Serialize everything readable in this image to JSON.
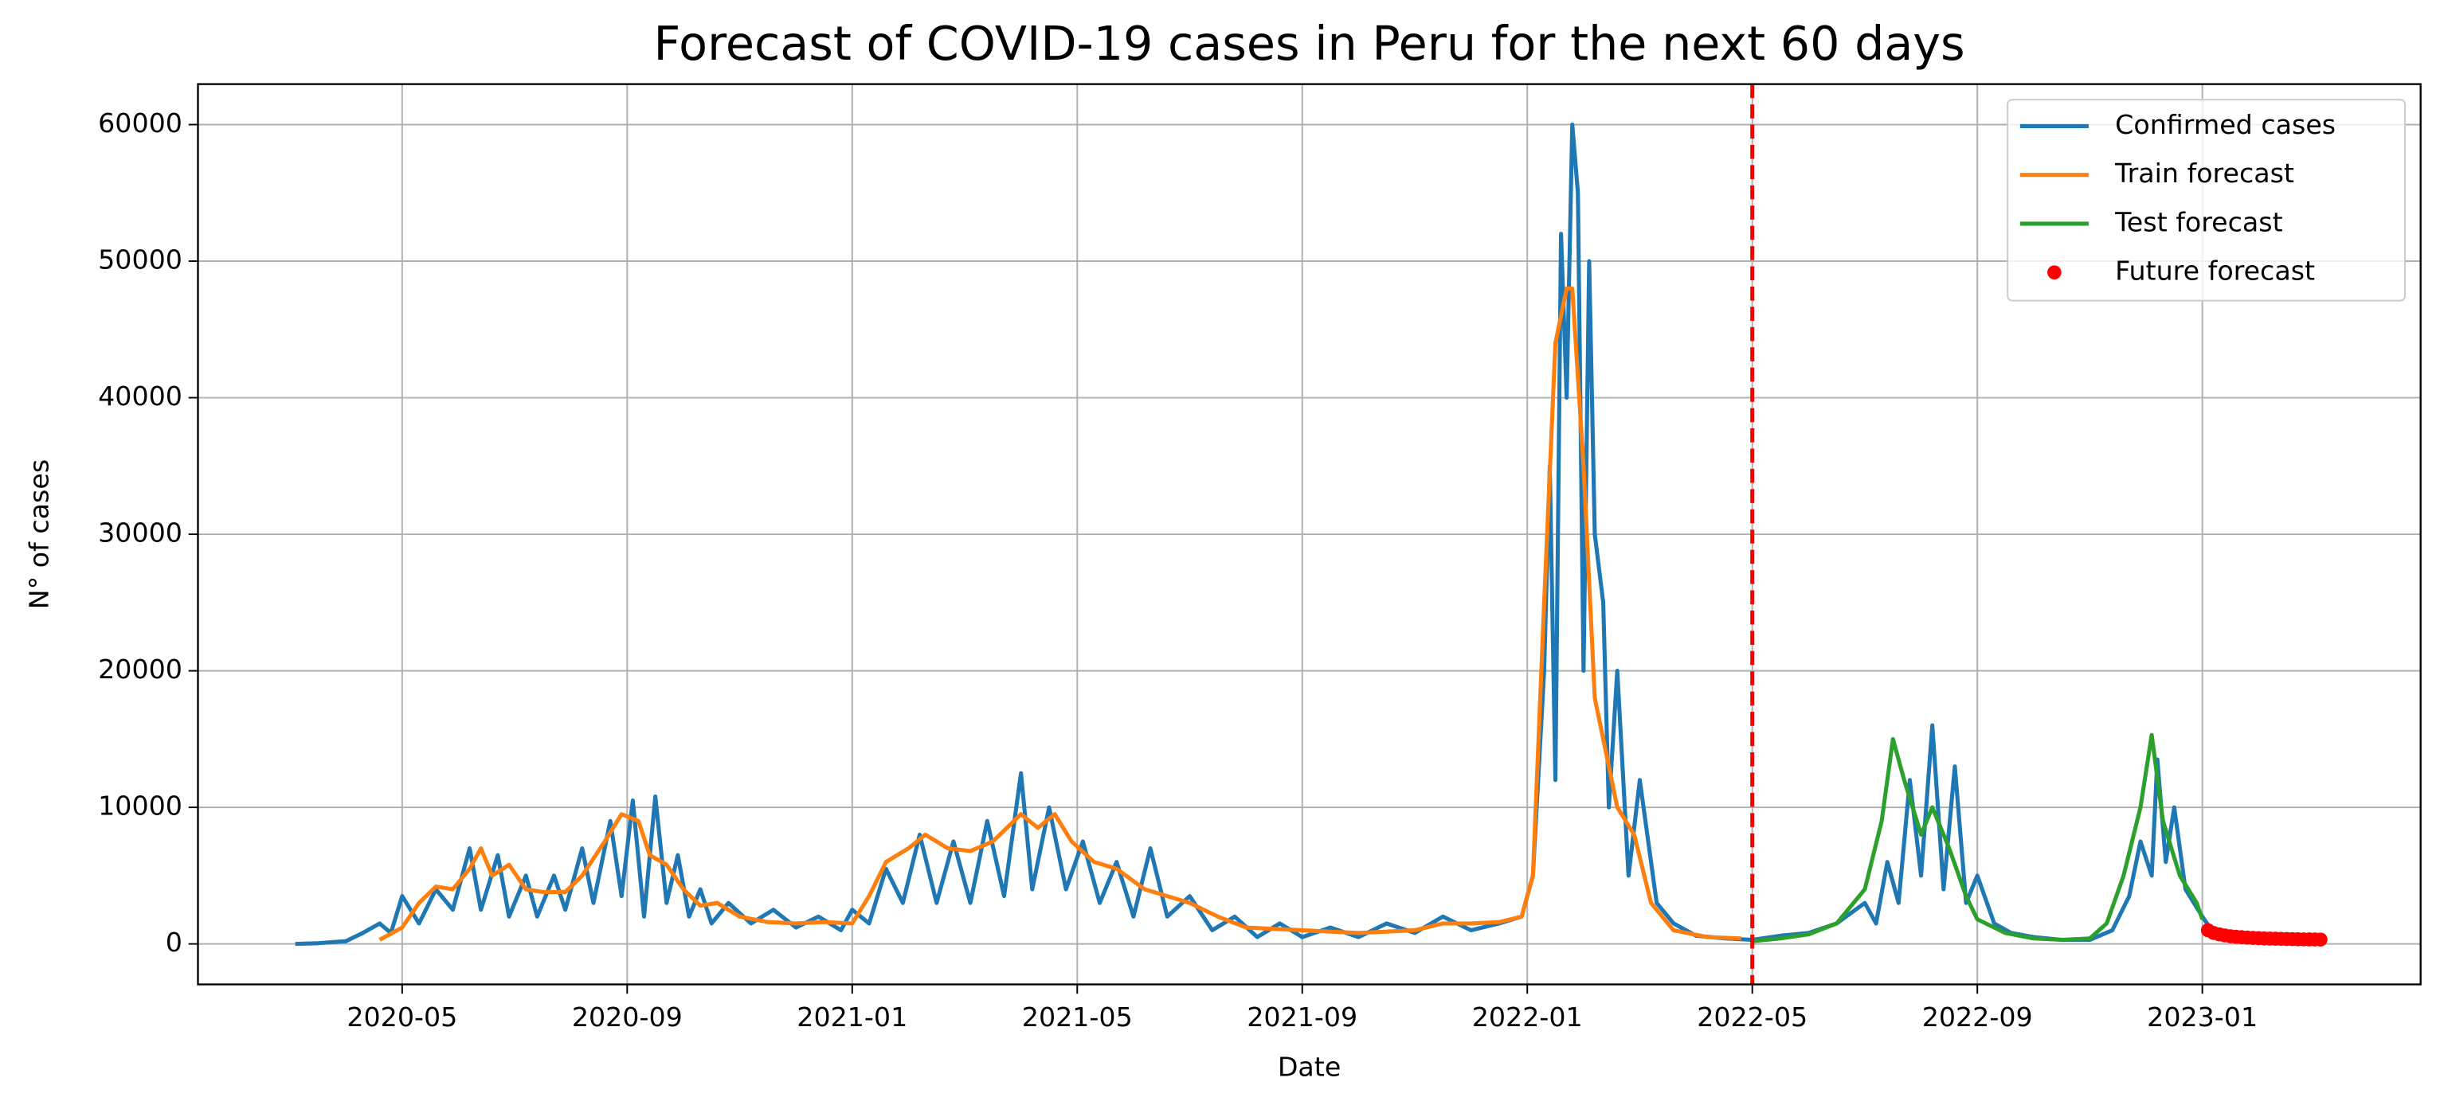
{
  "chart_data": {
    "type": "line",
    "title": "Forecast of COVID-19 cases in Peru for the next 60 days",
    "x_label": "Date",
    "y_label": "N° of cases",
    "xlim": [
      0.37,
      39.88
    ],
    "xticks": [
      {
        "value": 4,
        "label": "2020-05"
      },
      {
        "value": 8,
        "label": "2020-09"
      },
      {
        "value": 12,
        "label": "2021-01"
      },
      {
        "value": 16,
        "label": "2021-05"
      },
      {
        "value": 20,
        "label": "2021-09"
      },
      {
        "value": 24,
        "label": "2022-01"
      },
      {
        "value": 28,
        "label": "2022-05"
      },
      {
        "value": 32,
        "label": "2022-09"
      },
      {
        "value": 36,
        "label": "2023-01"
      }
    ],
    "ylim": [
      -2965,
      62965
    ],
    "yticks": [
      0,
      10000,
      20000,
      30000,
      40000,
      50000,
      60000
    ],
    "grid": true,
    "legend": "upper right",
    "vline": {
      "x": 28,
      "color": "#ff0000",
      "dashed": true
    },
    "series": [
      {
        "name": "Confirmed cases",
        "color": "#1f77b4",
        "style": "line",
        "x": [
          2.1,
          2.5,
          3.0,
          3.3,
          3.6,
          3.8,
          4.0,
          4.3,
          4.6,
          4.9,
          5.2,
          5.4,
          5.7,
          5.9,
          6.2,
          6.4,
          6.7,
          6.9,
          7.2,
          7.4,
          7.7,
          7.9,
          8.1,
          8.3,
          8.5,
          8.7,
          8.9,
          9.1,
          9.3,
          9.5,
          9.8,
          10.2,
          10.6,
          11.0,
          11.4,
          11.8,
          12.0,
          12.3,
          12.6,
          12.9,
          13.2,
          13.5,
          13.8,
          14.1,
          14.4,
          14.7,
          15.0,
          15.2,
          15.5,
          15.8,
          16.1,
          16.4,
          16.7,
          17.0,
          17.3,
          17.6,
          18.0,
          18.4,
          18.8,
          19.2,
          19.6,
          20.0,
          20.5,
          21.0,
          21.5,
          22.0,
          22.5,
          23.0,
          23.5,
          23.9,
          24.1,
          24.3,
          24.4,
          24.5,
          24.6,
          24.7,
          24.8,
          24.9,
          25.0,
          25.1,
          25.2,
          25.35,
          25.45,
          25.6,
          25.8,
          26.0,
          26.3,
          26.6,
          27.0,
          27.5,
          28.0,
          28.5,
          29.0,
          29.5,
          30.0,
          30.2,
          30.4,
          30.6,
          30.8,
          31.0,
          31.2,
          31.4,
          31.6,
          31.8,
          32.0,
          32.3,
          32.6,
          33.0,
          33.5,
          34.0,
          34.4,
          34.7,
          34.9,
          35.1,
          35.2,
          35.35,
          35.5,
          35.7,
          36.0,
          36.2
        ],
        "values": [
          0,
          50,
          200,
          800,
          1500,
          800,
          3500,
          1500,
          4000,
          2500,
          7000,
          2500,
          6500,
          2000,
          5000,
          2000,
          5000,
          2500,
          7000,
          3000,
          9000,
          3500,
          10500,
          2000,
          10800,
          3000,
          6500,
          2000,
          4000,
          1500,
          3000,
          1500,
          2500,
          1200,
          2000,
          1000,
          2500,
          1500,
          5500,
          3000,
          8000,
          3000,
          7500,
          3000,
          9000,
          3500,
          12500,
          4000,
          10000,
          4000,
          7500,
          3000,
          6000,
          2000,
          7000,
          2000,
          3500,
          1000,
          2000,
          500,
          1500,
          500,
          1200,
          500,
          1500,
          800,
          2000,
          1000,
          1500,
          2000,
          5000,
          20000,
          35000,
          12000,
          52000,
          40000,
          60000,
          55000,
          20000,
          50000,
          30000,
          25000,
          10000,
          20000,
          5000,
          12000,
          3000,
          1500,
          600,
          400,
          300,
          600,
          800,
          1500,
          3000,
          1500,
          6000,
          3000,
          12000,
          5000,
          16000,
          4000,
          13000,
          3000,
          5000,
          1500,
          800,
          500,
          300,
          300,
          1000,
          3500,
          7500,
          5000,
          13500,
          6000,
          10000,
          4000,
          2000,
          800
        ]
      },
      {
        "name": "Train forecast",
        "color": "#ff7f0e",
        "style": "line",
        "x": [
          3.6,
          4.0,
          4.3,
          4.6,
          4.9,
          5.2,
          5.4,
          5.6,
          5.9,
          6.2,
          6.5,
          6.9,
          7.2,
          7.6,
          7.9,
          8.2,
          8.4,
          8.7,
          9.0,
          9.3,
          9.6,
          10.0,
          10.5,
          11.0,
          11.5,
          12.0,
          12.3,
          12.6,
          13.0,
          13.3,
          13.7,
          14.1,
          14.5,
          15.0,
          15.3,
          15.6,
          15.9,
          16.3,
          16.7,
          17.2,
          17.6,
          18.0,
          18.5,
          19.0,
          20.0,
          21.0,
          22.0,
          22.5,
          23.0,
          23.5,
          23.9,
          24.1,
          24.3,
          24.5,
          24.7,
          24.8,
          25.0,
          25.2,
          25.4,
          25.6,
          25.9,
          26.2,
          26.6,
          27.2,
          27.8
        ],
        "values": [
          300,
          1200,
          3000,
          4200,
          4000,
          5500,
          7000,
          5000,
          5800,
          4000,
          3800,
          3800,
          5000,
          7500,
          9500,
          9000,
          6500,
          5800,
          4000,
          2800,
          3000,
          2000,
          1600,
          1500,
          1600,
          1500,
          3500,
          6000,
          7000,
          8000,
          7000,
          6800,
          7500,
          9500,
          8500,
          9500,
          7500,
          6000,
          5500,
          4000,
          3500,
          3000,
          2000,
          1200,
          1000,
          800,
          1000,
          1500,
          1500,
          1600,
          2000,
          5000,
          25000,
          44000,
          48000,
          48000,
          35000,
          18000,
          14000,
          10000,
          8000,
          3000,
          1000,
          500,
          400
        ]
      },
      {
        "name": "Test forecast",
        "color": "#2ca02c",
        "style": "line",
        "x": [
          28.0,
          28.5,
          29.0,
          29.5,
          30.0,
          30.3,
          30.5,
          30.7,
          31.0,
          31.2,
          31.5,
          31.8,
          32.0,
          32.5,
          33.0,
          33.5,
          34.0,
          34.3,
          34.6,
          34.9,
          35.1,
          35.3,
          35.6,
          35.9,
          36.0
        ],
        "values": [
          200,
          400,
          700,
          1500,
          4000,
          9000,
          15000,
          12000,
          8000,
          10000,
          7000,
          3500,
          1800,
          800,
          400,
          300,
          400,
          1500,
          5000,
          10000,
          15300,
          9000,
          5000,
          3000,
          1800
        ]
      },
      {
        "name": "Future forecast",
        "color": "#ff0000",
        "style": "scatter",
        "x": [
          36.1,
          36.2,
          36.3,
          36.4,
          36.5,
          36.6,
          36.7,
          36.8,
          36.9,
          37.0,
          37.1,
          37.2,
          37.3,
          37.4,
          37.5,
          37.6,
          37.7,
          37.8,
          37.9,
          38.0,
          38.1
        ],
        "values": [
          1000,
          800,
          700,
          620,
          560,
          520,
          490,
          460,
          440,
          420,
          400,
          390,
          380,
          370,
          360,
          350,
          340,
          335,
          330,
          325,
          320
        ]
      }
    ]
  }
}
